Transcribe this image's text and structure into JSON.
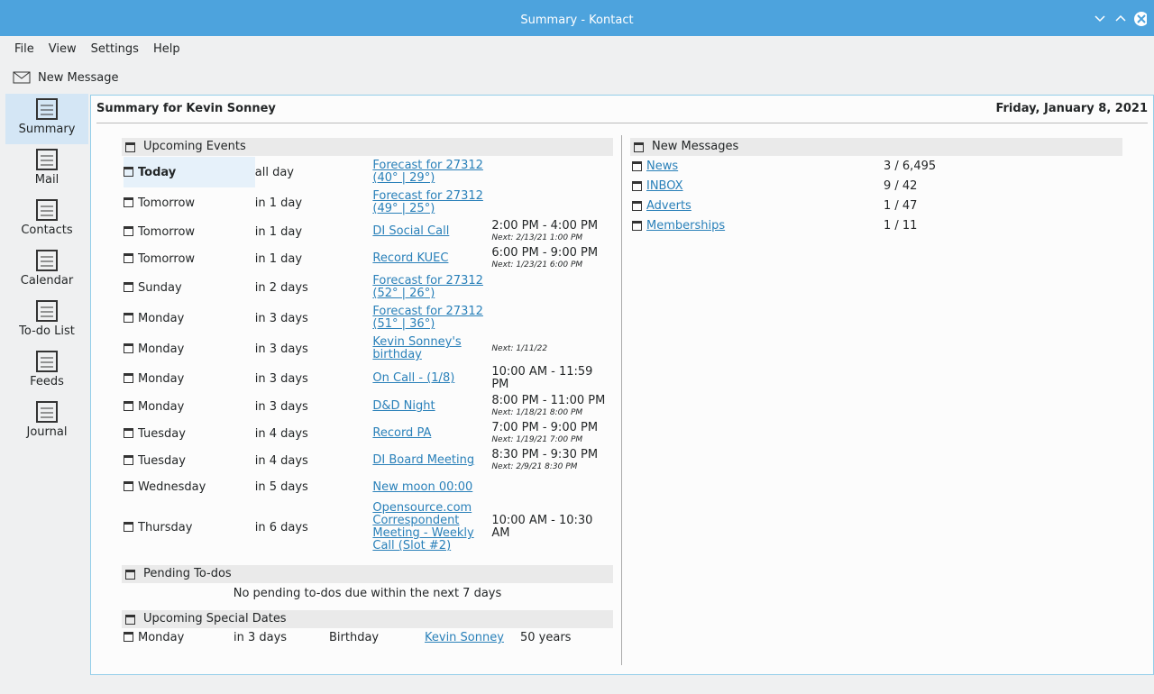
{
  "window": {
    "title": "Summary - Kontact"
  },
  "menu": [
    "File",
    "View",
    "Settings",
    "Help"
  ],
  "toolbar": {
    "new_message": "New Message"
  },
  "sidebar": [
    "Summary",
    "Mail",
    "Contacts",
    "Calendar",
    "To-do List",
    "Feeds",
    "Journal"
  ],
  "summary": {
    "heading": "Summary for Kevin Sonney",
    "date": "Friday, January 8, 2021"
  },
  "events": {
    "title": "Upcoming Events",
    "rows": [
      {
        "day": "Today",
        "when": "all day",
        "title": "Forecast for 27312 (40° | 29°)"
      },
      {
        "day": "Tomorrow",
        "when": "in 1 day",
        "title": "Forecast for 27312 (49° | 25°)"
      },
      {
        "day": "Tomorrow",
        "when": "in 1 day",
        "title": "DI Social Call",
        "time": "2:00 PM - 4:00 PM",
        "next": "Next: 2/13/21 1:00 PM"
      },
      {
        "day": "Tomorrow",
        "when": "in 1 day",
        "title": "Record KUEC",
        "time": "6:00 PM - 9:00 PM",
        "next": "Next: 1/23/21 6:00 PM"
      },
      {
        "day": "Sunday",
        "when": "in 2 days",
        "title": "Forecast for 27312 (52° | 26°)"
      },
      {
        "day": "Monday",
        "when": "in 3 days",
        "title": "Forecast for 27312 (51° | 36°)"
      },
      {
        "day": "Monday",
        "when": "in 3 days",
        "title": "Kevin Sonney's birthday",
        "next": "Next: 1/11/22"
      },
      {
        "day": "Monday",
        "when": "in 3 days",
        "title": "On Call - (1/8)",
        "time": "10:00 AM - 11:59 PM"
      },
      {
        "day": "Monday",
        "when": "in 3 days",
        "title": "D&D Night",
        "time": "8:00 PM - 11:00 PM",
        "next": "Next: 1/18/21 8:00 PM"
      },
      {
        "day": "Tuesday",
        "when": "in 4 days",
        "title": "Record PA",
        "time": "7:00 PM - 9:00 PM",
        "next": "Next: 1/19/21 7:00 PM"
      },
      {
        "day": "Tuesday",
        "when": "in 4 days",
        "title": "DI Board Meeting",
        "time": "8:30 PM - 9:30 PM",
        "next": "Next: 2/9/21 8:30 PM"
      },
      {
        "day": "Wednesday",
        "when": "in 5 days",
        "title": "New moon 00:00"
      },
      {
        "day": "Thursday",
        "when": "in 6 days",
        "title": "Opensource.com Correspondent Meeting - Weekly Call (Slot #2)",
        "time": "10:00 AM - 10:30 AM"
      }
    ]
  },
  "todos": {
    "title": "Pending To-dos",
    "message": "No pending to-dos due within the next 7 days"
  },
  "special": {
    "title": "Upcoming Special Dates",
    "rows": [
      {
        "day": "Monday",
        "when": "in 3 days",
        "kind": "Birthday",
        "name": "Kevin Sonney",
        "age": "50 years"
      }
    ]
  },
  "messages": {
    "title": "New Messages",
    "rows": [
      {
        "folder": "News",
        "count": "3 / 6,495"
      },
      {
        "folder": "INBOX",
        "count": "9 / 42"
      },
      {
        "folder": "Adverts",
        "count": "1 / 47"
      },
      {
        "folder": "Memberships",
        "count": "1 / 11"
      }
    ]
  }
}
